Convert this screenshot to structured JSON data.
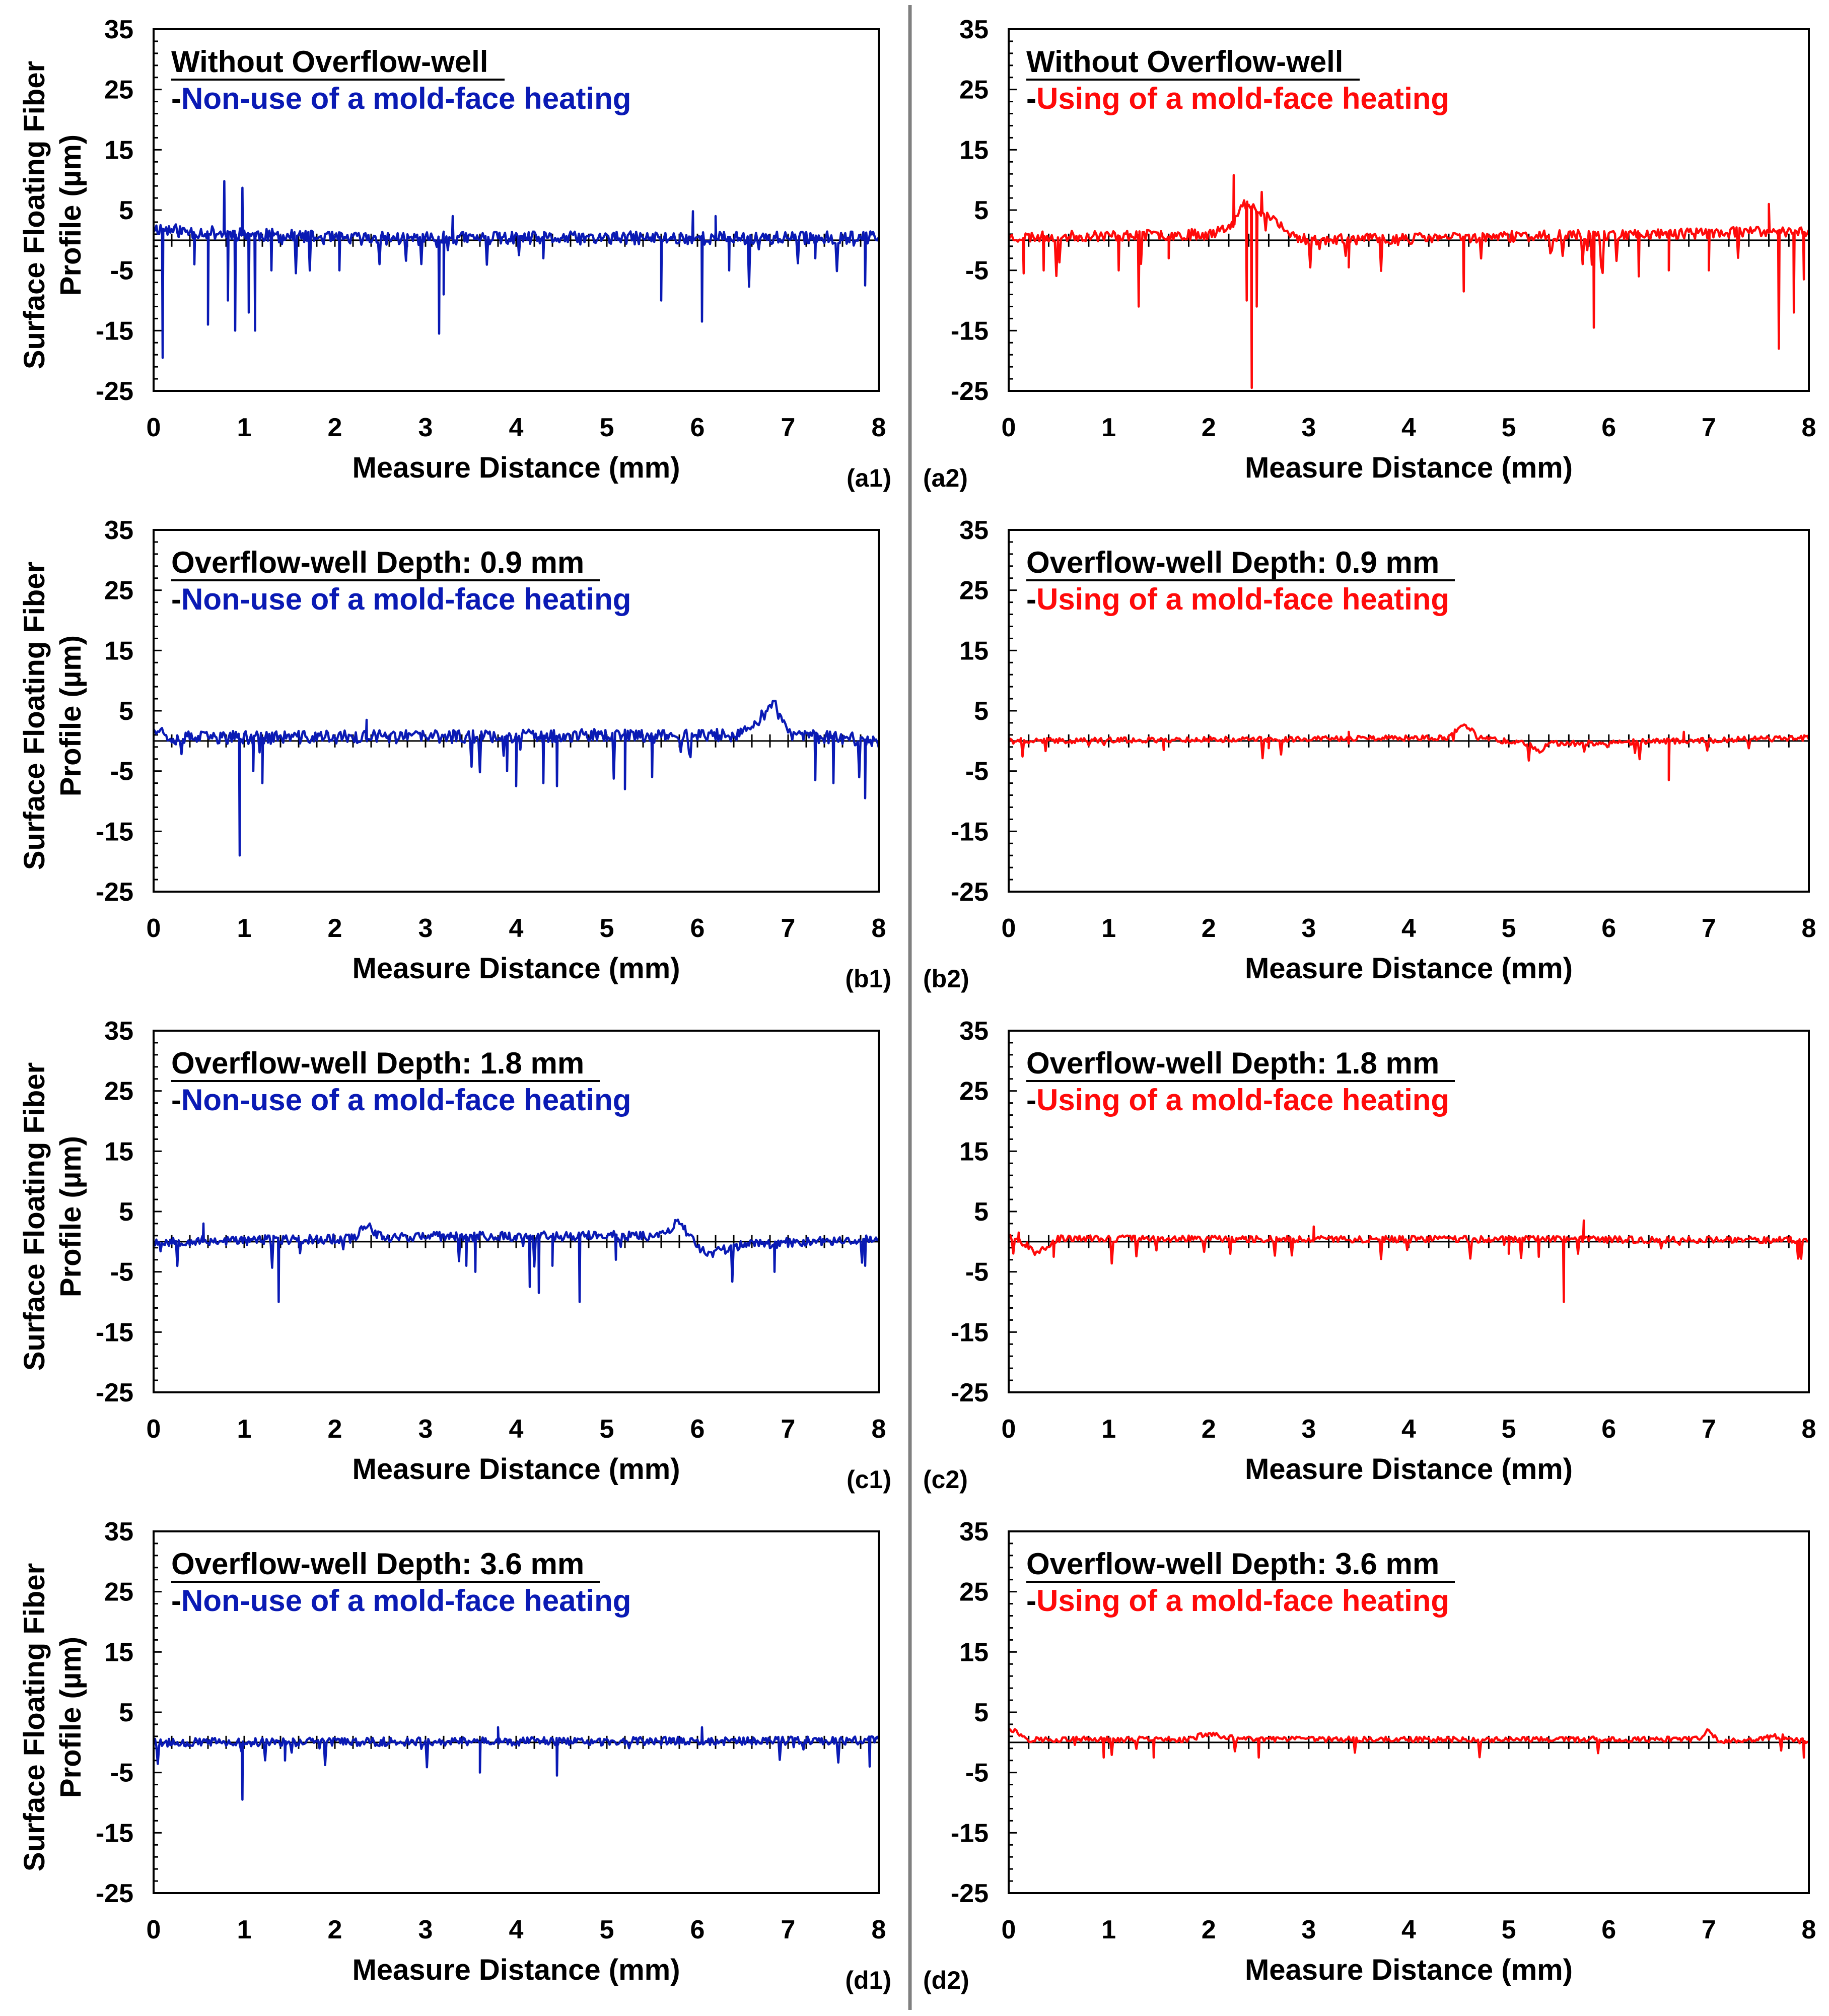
{
  "figure": {
    "blue": "#0a1ab4",
    "red": "#ff0a0a"
  },
  "chart_data": [
    {
      "id": "a1",
      "type": "line",
      "panel_label": "(a1)",
      "title": "Without Overflow-well",
      "subtitle_prefix": "-",
      "subtitle": "Non-use of a mold-face heating",
      "xlabel": "Measure Distance (mm)",
      "ylabel_lines": [
        "Surface Floating Fiber",
        "Profile (µm)"
      ],
      "xlim": [
        0,
        8
      ],
      "ylim": [
        -25,
        35
      ],
      "x_ticks": [
        "0",
        "1",
        "2",
        "3",
        "4",
        "5",
        "6",
        "7",
        "8"
      ],
      "y_ticks": [
        "35",
        "25",
        "15",
        "5",
        "-5",
        "-15",
        "-25"
      ],
      "series": [
        {
          "name": "Non-use of a mold-face heating",
          "color": "#0a1ab4",
          "noise": 1.1,
          "seed": 11,
          "base": [
            [
              0,
              2
            ],
            [
              0.3,
              1.5
            ],
            [
              2,
              0.3
            ],
            [
              8,
              0.4
            ]
          ],
          "spikes": [
            [
              0.1,
              -19.5
            ],
            [
              0.45,
              -4
            ],
            [
              0.6,
              -14
            ],
            [
              0.78,
              9.8
            ],
            [
              0.82,
              -10
            ],
            [
              0.9,
              -15
            ],
            [
              0.98,
              8.7
            ],
            [
              1.05,
              -12
            ],
            [
              1.12,
              -15
            ],
            [
              1.3,
              -5
            ],
            [
              2.05,
              -5
            ],
            [
              3.15,
              -15.5
            ],
            [
              3.2,
              -9
            ],
            [
              3.3,
              4
            ],
            [
              4.3,
              -3
            ],
            [
              5.6,
              -10
            ],
            [
              5.95,
              4.8
            ],
            [
              6.05,
              -13.5
            ],
            [
              6.2,
              4
            ],
            [
              6.35,
              -5
            ],
            [
              7.3,
              -3
            ],
            [
              7.85,
              -7.5
            ]
          ],
          "x": [
            0,
            1,
            2,
            3,
            4,
            5,
            6,
            7,
            8
          ],
          "y": [
            2,
            1,
            0.4,
            0.5,
            0.3,
            0.4,
            0.5,
            0.4,
            0.4
          ]
        }
      ]
    },
    {
      "id": "a2",
      "type": "line",
      "panel_label": "(a2)",
      "title": "Without Overflow-well",
      "subtitle_prefix": "-",
      "subtitle": "Using of a mold-face heating",
      "xlabel": "Measure Distance (mm)",
      "ylabel_lines": [],
      "xlim": [
        0,
        8
      ],
      "ylim": [
        -25,
        35
      ],
      "x_ticks": [
        "0",
        "1",
        "2",
        "3",
        "4",
        "5",
        "6",
        "7",
        "8"
      ],
      "y_ticks": [
        "35",
        "25",
        "15",
        "5",
        "-5",
        "-15",
        "-25"
      ],
      "series": [
        {
          "name": "Using of a mold-face heating",
          "color": "#ff0a0a",
          "noise": 0.9,
          "seed": 23,
          "base": [
            [
              0,
              0.5
            ],
            [
              2.0,
              1
            ],
            [
              2.25,
              3
            ],
            [
              2.35,
              6
            ],
            [
              2.6,
              4
            ],
            [
              2.8,
              1
            ],
            [
              3.0,
              0
            ],
            [
              8,
              1.5
            ]
          ],
          "spikes": [
            [
              0.15,
              -5.5
            ],
            [
              0.35,
              -5
            ],
            [
              1.1,
              -5
            ],
            [
              1.3,
              -11
            ],
            [
              1.6,
              -3
            ],
            [
              2.25,
              10.8
            ],
            [
              2.38,
              -10
            ],
            [
              2.43,
              -24.5
            ],
            [
              2.48,
              -11
            ],
            [
              2.53,
              8
            ],
            [
              3.4,
              -4.5
            ],
            [
              4.55,
              -8.5
            ],
            [
              5.85,
              -14.5
            ],
            [
              6.3,
              -6
            ],
            [
              6.6,
              -5
            ],
            [
              7.0,
              -5
            ],
            [
              7.6,
              6
            ],
            [
              7.7,
              -18
            ],
            [
              7.85,
              -12
            ],
            [
              7.95,
              -6.5
            ]
          ],
          "x": [
            0,
            1,
            2,
            2.4,
            3,
            4,
            5,
            6,
            7,
            8
          ],
          "y": [
            0.5,
            0.8,
            1,
            5,
            0,
            0.5,
            0.8,
            1,
            1.2,
            1.5
          ]
        }
      ]
    },
    {
      "id": "b1",
      "type": "line",
      "panel_label": "(b1)",
      "title": "Overflow-well Depth: 0.9 mm",
      "subtitle_prefix": "-",
      "subtitle": "Non-use of a mold-face heating",
      "xlabel": "Measure Distance (mm)",
      "ylabel_lines": [
        "Surface Floating Fiber",
        "Profile (µm)"
      ],
      "xlim": [
        0,
        8
      ],
      "ylim": [
        -25,
        35
      ],
      "x_ticks": [
        "0",
        "1",
        "2",
        "3",
        "4",
        "5",
        "6",
        "7",
        "8"
      ],
      "y_ticks": [
        "35",
        "25",
        "15",
        "5",
        "-5",
        "-15",
        "-25"
      ],
      "series": [
        {
          "name": "Non-use of a mold-face heating",
          "color": "#0a1ab4",
          "noise": 1.1,
          "seed": 37,
          "base": [
            [
              0,
              2.5
            ],
            [
              0.2,
              0.5
            ],
            [
              6.5,
              1
            ],
            [
              6.85,
              6
            ],
            [
              7.0,
              1
            ],
            [
              8,
              0
            ]
          ],
          "spikes": [
            [
              0.95,
              -19
            ],
            [
              1.1,
              -5
            ],
            [
              1.2,
              -7
            ],
            [
              2.35,
              3.5
            ],
            [
              3.9,
              -5
            ],
            [
              4.0,
              -7.5
            ],
            [
              4.3,
              -7
            ],
            [
              4.45,
              -7.5
            ],
            [
              5.2,
              -8
            ],
            [
              5.5,
              -6
            ],
            [
              7.3,
              -6.5
            ],
            [
              7.5,
              -7
            ],
            [
              7.85,
              -9.5
            ]
          ],
          "x": [
            0,
            1,
            2,
            3,
            4,
            5,
            6,
            6.85,
            7,
            8
          ],
          "y": [
            2.5,
            0.5,
            0.5,
            0.3,
            0.5,
            0.5,
            1,
            6,
            1,
            0
          ]
        }
      ]
    },
    {
      "id": "b2",
      "type": "line",
      "panel_label": "(b2)",
      "title": "Overflow-well Depth: 0.9 mm",
      "subtitle_prefix": "-",
      "subtitle": "Using of a mold-face heating",
      "xlabel": "Measure Distance (mm)",
      "ylabel_lines": [],
      "xlim": [
        0,
        8
      ],
      "ylim": [
        -25,
        35
      ],
      "x_ticks": [
        "0",
        "1",
        "2",
        "3",
        "4",
        "5",
        "6",
        "7",
        "8"
      ],
      "y_ticks": [
        "35",
        "25",
        "15",
        "5",
        "-5",
        "-15",
        "-25"
      ],
      "series": [
        {
          "name": "Using of a mold-face heating",
          "color": "#ff0a0a",
          "noise": 0.45,
          "seed": 41,
          "base": [
            [
              0,
              0
            ],
            [
              4.4,
              0.5
            ],
            [
              4.55,
              3
            ],
            [
              4.7,
              0.5
            ],
            [
              5.2,
              -0.5
            ],
            [
              5.3,
              -2
            ],
            [
              5.4,
              -0.5
            ],
            [
              8,
              0.5
            ]
          ],
          "spikes": [
            [
              1.55,
              -1.5
            ],
            [
              2.6,
              -1.2
            ],
            [
              3.4,
              1.5
            ],
            [
              6.6,
              -6.5
            ],
            [
              6.75,
              1.5
            ]
          ],
          "x": [
            0,
            1,
            2,
            3,
            4,
            4.55,
            5,
            5.3,
            6,
            7,
            8
          ],
          "y": [
            0,
            -0.2,
            0.3,
            0,
            0.5,
            3,
            0.3,
            -2,
            0.8,
            0.3,
            0.5
          ]
        }
      ]
    },
    {
      "id": "c1",
      "type": "line",
      "panel_label": "(c1)",
      "title": "Overflow-well Depth: 1.8 mm",
      "subtitle_prefix": "-",
      "subtitle": "Non-use of a mold-face heating",
      "xlabel": "Measure Distance (mm)",
      "ylabel_lines": [
        "Surface Floating Fiber",
        "Profile (µm)"
      ],
      "xlim": [
        0,
        8
      ],
      "ylim": [
        -25,
        35
      ],
      "x_ticks": [
        "0",
        "1",
        "2",
        "3",
        "4",
        "5",
        "6",
        "7",
        "8"
      ],
      "y_ticks": [
        "35",
        "25",
        "15",
        "5",
        "-5",
        "-15",
        "-25"
      ],
      "series": [
        {
          "name": "Non-use of a mold-face heating",
          "color": "#0a1ab4",
          "noise": 0.8,
          "seed": 53,
          "base": [
            [
              0,
              0
            ],
            [
              2.2,
              0.5
            ],
            [
              2.35,
              3
            ],
            [
              2.5,
              0.8
            ],
            [
              5.6,
              1
            ],
            [
              5.8,
              3.5
            ],
            [
              5.95,
              0
            ],
            [
              6.1,
              -2
            ],
            [
              6.5,
              -0.5
            ],
            [
              8,
              0.5
            ]
          ],
          "spikes": [
            [
              0.55,
              3
            ],
            [
              1.38,
              -10
            ],
            [
              3.45,
              -4
            ],
            [
              3.55,
              -5
            ],
            [
              4.15,
              -7.5
            ],
            [
              4.25,
              -8.5
            ],
            [
              4.4,
              -4
            ],
            [
              4.7,
              -10
            ],
            [
              5.1,
              -3
            ],
            [
              6.85,
              -5
            ],
            [
              7.85,
              -4
            ]
          ],
          "x": [
            0,
            1,
            2,
            2.35,
            3,
            4,
            5,
            5.8,
            6.1,
            7,
            8
          ],
          "y": [
            0,
            0.3,
            0.5,
            3,
            0.5,
            0.5,
            1,
            3.5,
            -2,
            0,
            0.5
          ]
        }
      ]
    },
    {
      "id": "c2",
      "type": "line",
      "panel_label": "(c2)",
      "title": "Overflow-well Depth: 1.8 mm",
      "subtitle_prefix": "-",
      "subtitle": "Using of a mold-face heating",
      "xlabel": "Measure Distance (mm)",
      "ylabel_lines": [],
      "xlim": [
        0,
        8
      ],
      "ylim": [
        -25,
        35
      ],
      "x_ticks": [
        "0",
        "1",
        "2",
        "3",
        "4",
        "5",
        "6",
        "7",
        "8"
      ],
      "y_ticks": [
        "35",
        "25",
        "15",
        "5",
        "-5",
        "-15",
        "-25"
      ],
      "series": [
        {
          "name": "Using of a mold-face heating",
          "color": "#ff0a0a",
          "noise": 0.55,
          "seed": 67,
          "base": [
            [
              0,
              1
            ],
            [
              0.3,
              -1.5
            ],
            [
              0.5,
              0.5
            ],
            [
              8,
              0.3
            ]
          ],
          "spikes": [
            [
              0.1,
              1.5
            ],
            [
              0.45,
              -2.5
            ],
            [
              3.05,
              2.5
            ],
            [
              5.0,
              -2
            ],
            [
              5.3,
              -2.5
            ],
            [
              5.55,
              -10
            ],
            [
              5.75,
              3.5
            ],
            [
              7.9,
              -2.5
            ]
          ],
          "x": [
            0,
            1,
            2,
            3,
            4,
            5,
            5.55,
            6,
            7,
            8
          ],
          "y": [
            1,
            0,
            0.5,
            1,
            0.3,
            0,
            -10,
            0.5,
            0.3,
            0.3
          ]
        }
      ]
    },
    {
      "id": "d1",
      "type": "line",
      "panel_label": "(d1)",
      "title": "Overflow-well Depth: 3.6 mm",
      "subtitle_prefix": "-",
      "subtitle": "Non-use of a mold-face heating",
      "xlabel": "Measure Distance (mm)",
      "ylabel_lines": [
        "Surface Floating Fiber",
        "Profile (µm)"
      ],
      "xlim": [
        0,
        8
      ],
      "ylim": [
        -25,
        35
      ],
      "x_ticks": [
        "0",
        "1",
        "2",
        "3",
        "4",
        "5",
        "6",
        "7",
        "8"
      ],
      "y_ticks": [
        "35",
        "25",
        "15",
        "5",
        "-5",
        "-15",
        "-25"
      ],
      "series": [
        {
          "name": "Non-use of a mold-face heating",
          "color": "#0a1ab4",
          "noise": 0.7,
          "seed": 79,
          "base": [
            [
              0,
              0
            ],
            [
              8,
              0.3
            ]
          ],
          "spikes": [
            [
              0.98,
              -9.5
            ],
            [
              1.45,
              -3
            ],
            [
              3.6,
              -5
            ],
            [
              3.8,
              2.5
            ],
            [
              4.45,
              -5.5
            ],
            [
              6.05,
              2.5
            ],
            [
              7.9,
              -4
            ]
          ],
          "x": [
            0,
            1,
            2,
            3,
            4,
            5,
            6,
            7,
            8
          ],
          "y": [
            0,
            -0.3,
            0.3,
            0.2,
            0.3,
            0.3,
            0.5,
            0.3,
            0
          ]
        }
      ]
    },
    {
      "id": "d2",
      "type": "line",
      "panel_label": "(d2)",
      "title": "Overflow-well Depth: 3.6 mm",
      "subtitle_prefix": "-",
      "subtitle": "Using of a mold-face heating",
      "xlabel": "Measure Distance (mm)",
      "ylabel_lines": [],
      "xlim": [
        0,
        8
      ],
      "ylim": [
        -25,
        35
      ],
      "x_ticks": [
        "0",
        "1",
        "2",
        "3",
        "4",
        "5",
        "6",
        "7",
        "8"
      ],
      "y_ticks": [
        "35",
        "25",
        "15",
        "5",
        "-5",
        "-15",
        "-25"
      ],
      "series": [
        {
          "name": "Using of a mold-face heating",
          "color": "#ff0a0a",
          "noise": 0.45,
          "seed": 97,
          "base": [
            [
              0,
              2.5
            ],
            [
              0.2,
              0.5
            ],
            [
              1.8,
              0.5
            ],
            [
              2.0,
              1.5
            ],
            [
              2.3,
              0.5
            ],
            [
              6.9,
              0.5
            ],
            [
              7.0,
              2
            ],
            [
              7.1,
              0
            ],
            [
              7.7,
              1
            ],
            [
              8,
              0
            ]
          ],
          "spikes": [
            [
              0.95,
              -2.5
            ],
            [
              1.45,
              -2.5
            ],
            [
              2.5,
              -2.5
            ],
            [
              7.95,
              -2.5
            ]
          ],
          "x": [
            0,
            1,
            2,
            3,
            4,
            5,
            6,
            7,
            8
          ],
          "y": [
            2.5,
            0,
            1.5,
            0.3,
            0.2,
            0.5,
            0.3,
            2,
            0
          ]
        }
      ]
    }
  ]
}
